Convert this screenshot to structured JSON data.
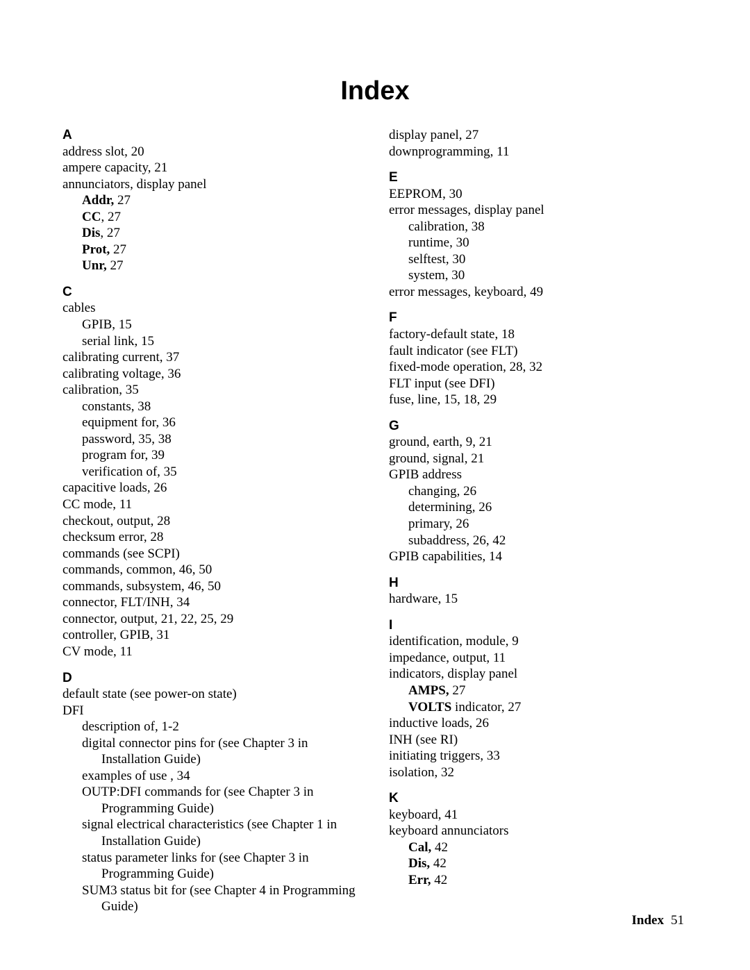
{
  "title": "Index",
  "footer": {
    "label": "Index",
    "page": "51"
  },
  "left": {
    "A": {
      "letter": "A",
      "items": [
        {
          "t": "address slot, 20"
        },
        {
          "t": "ampere capacity, 21"
        },
        {
          "t": "annunciators, display panel"
        },
        {
          "sub": true,
          "bold": "Addr,",
          "rest": " 27"
        },
        {
          "sub": true,
          "bold": "CC",
          "rest": ", 27"
        },
        {
          "sub": true,
          "bold": "Dis",
          "rest": ", 27"
        },
        {
          "sub": true,
          "bold": "Prot,",
          "rest": " 27"
        },
        {
          "sub": true,
          "bold": "Unr,",
          "rest": " 27"
        }
      ]
    },
    "C": {
      "letter": "C",
      "items": [
        {
          "t": "cables"
        },
        {
          "sub": true,
          "t": "GPIB, 15"
        },
        {
          "sub": true,
          "t": "serial link, 15"
        },
        {
          "t": "calibrating current, 37"
        },
        {
          "t": "calibrating voltage, 36"
        },
        {
          "t": "calibration, 35"
        },
        {
          "sub": true,
          "t": "constants, 38"
        },
        {
          "sub": true,
          "t": "equipment for, 36"
        },
        {
          "sub": true,
          "t": "password, 35, 38"
        },
        {
          "sub": true,
          "t": "program for, 39"
        },
        {
          "sub": true,
          "t": "verification of, 35"
        },
        {
          "t": "capacitive loads, 26"
        },
        {
          "t": "CC mode, 11"
        },
        {
          "t": "checkout, output, 28"
        },
        {
          "t": "checksum error, 28"
        },
        {
          "t": "commands (see SCPI)"
        },
        {
          "t": "commands, common, 46, 50"
        },
        {
          "t": "commands, subsystem, 46, 50"
        },
        {
          "t": "connector, FLT/INH, 34"
        },
        {
          "t": "connector, output, 21, 22, 25, 29"
        },
        {
          "t": "controller, GPIB, 31"
        },
        {
          "t": "CV mode, 11"
        }
      ]
    },
    "D": {
      "letter": "D",
      "items": [
        {
          "t": "default state (see power-on state)"
        },
        {
          "t": "DFI"
        },
        {
          "sub": true,
          "t": "description of, 1-2"
        },
        {
          "hang": true,
          "t": "digital connector pins for (see Chapter 3 in Installation Guide)"
        },
        {
          "sub": true,
          "t": "examples of use , 34"
        },
        {
          "hang": true,
          "t": "OUTP:DFI commands for (see Chapter 3 in Programming Guide)"
        },
        {
          "hang": true,
          "t": "signal electrical characteristics (see Chapter 1 in Installation Guide)"
        },
        {
          "hang": true,
          "t": "status parameter links for (see Chapter 3 in Programming Guide)"
        },
        {
          "hang": true,
          "t": "SUM3 status bit for (see Chapter 4 in Programming Guide)"
        }
      ]
    }
  },
  "right": {
    "pre": [
      {
        "t": "display panel, 27"
      },
      {
        "t": "downprogramming, 11"
      }
    ],
    "E": {
      "letter": "E",
      "items": [
        {
          "t": "EEPROM, 30"
        },
        {
          "t": "error messages, display panel"
        },
        {
          "sub": true,
          "t": "calibration, 38"
        },
        {
          "sub": true,
          "t": "runtime, 30"
        },
        {
          "sub": true,
          "t": "selftest, 30"
        },
        {
          "sub": true,
          "t": "system, 30"
        },
        {
          "t": "error messages, keyboard, 49"
        }
      ]
    },
    "F": {
      "letter": "F",
      "items": [
        {
          "t": "factory-default state, 18"
        },
        {
          "t": "fault indicator (see FLT)"
        },
        {
          "t": "fixed-mode operation, 28, 32"
        },
        {
          "t": "FLT input (see DFI)"
        },
        {
          "t": "fuse, line, 15, 18, 29"
        }
      ]
    },
    "G": {
      "letter": "G",
      "items": [
        {
          "t": "ground, earth, 9, 21"
        },
        {
          "t": "ground, signal, 21"
        },
        {
          "t": "GPIB address"
        },
        {
          "sub": true,
          "t": "changing, 26"
        },
        {
          "sub": true,
          "t": "determining, 26"
        },
        {
          "sub": true,
          "t": "primary, 26"
        },
        {
          "sub": true,
          "t": "subaddress, 26, 42"
        },
        {
          "t": "GPIB capabilities, 14"
        }
      ]
    },
    "H": {
      "letter": "H",
      "items": [
        {
          "t": "hardware, 15"
        }
      ]
    },
    "I": {
      "letter": "I",
      "items": [
        {
          "t": "identification, module, 9"
        },
        {
          "t": "impedance, output, 11"
        },
        {
          "t": "indicators, display panel"
        },
        {
          "sub": true,
          "bold": "AMPS,",
          "rest": " 27"
        },
        {
          "sub": true,
          "bold": "VOLTS",
          "rest": " indicator, 27"
        },
        {
          "t": "inductive loads, 26"
        },
        {
          "t": "INH (see RI)"
        },
        {
          "t": "initiating triggers, 33"
        },
        {
          "t": "isolation, 32"
        }
      ]
    },
    "K": {
      "letter": "K",
      "items": [
        {
          "t": "keyboard, 41"
        },
        {
          "t": "keyboard annunciators"
        },
        {
          "sub": true,
          "bold": "Cal,",
          "rest": " 42"
        },
        {
          "sub": true,
          "bold": "Dis,",
          "rest": " 42"
        },
        {
          "sub": true,
          "bold": "Err,",
          "rest": " 42"
        }
      ]
    }
  }
}
